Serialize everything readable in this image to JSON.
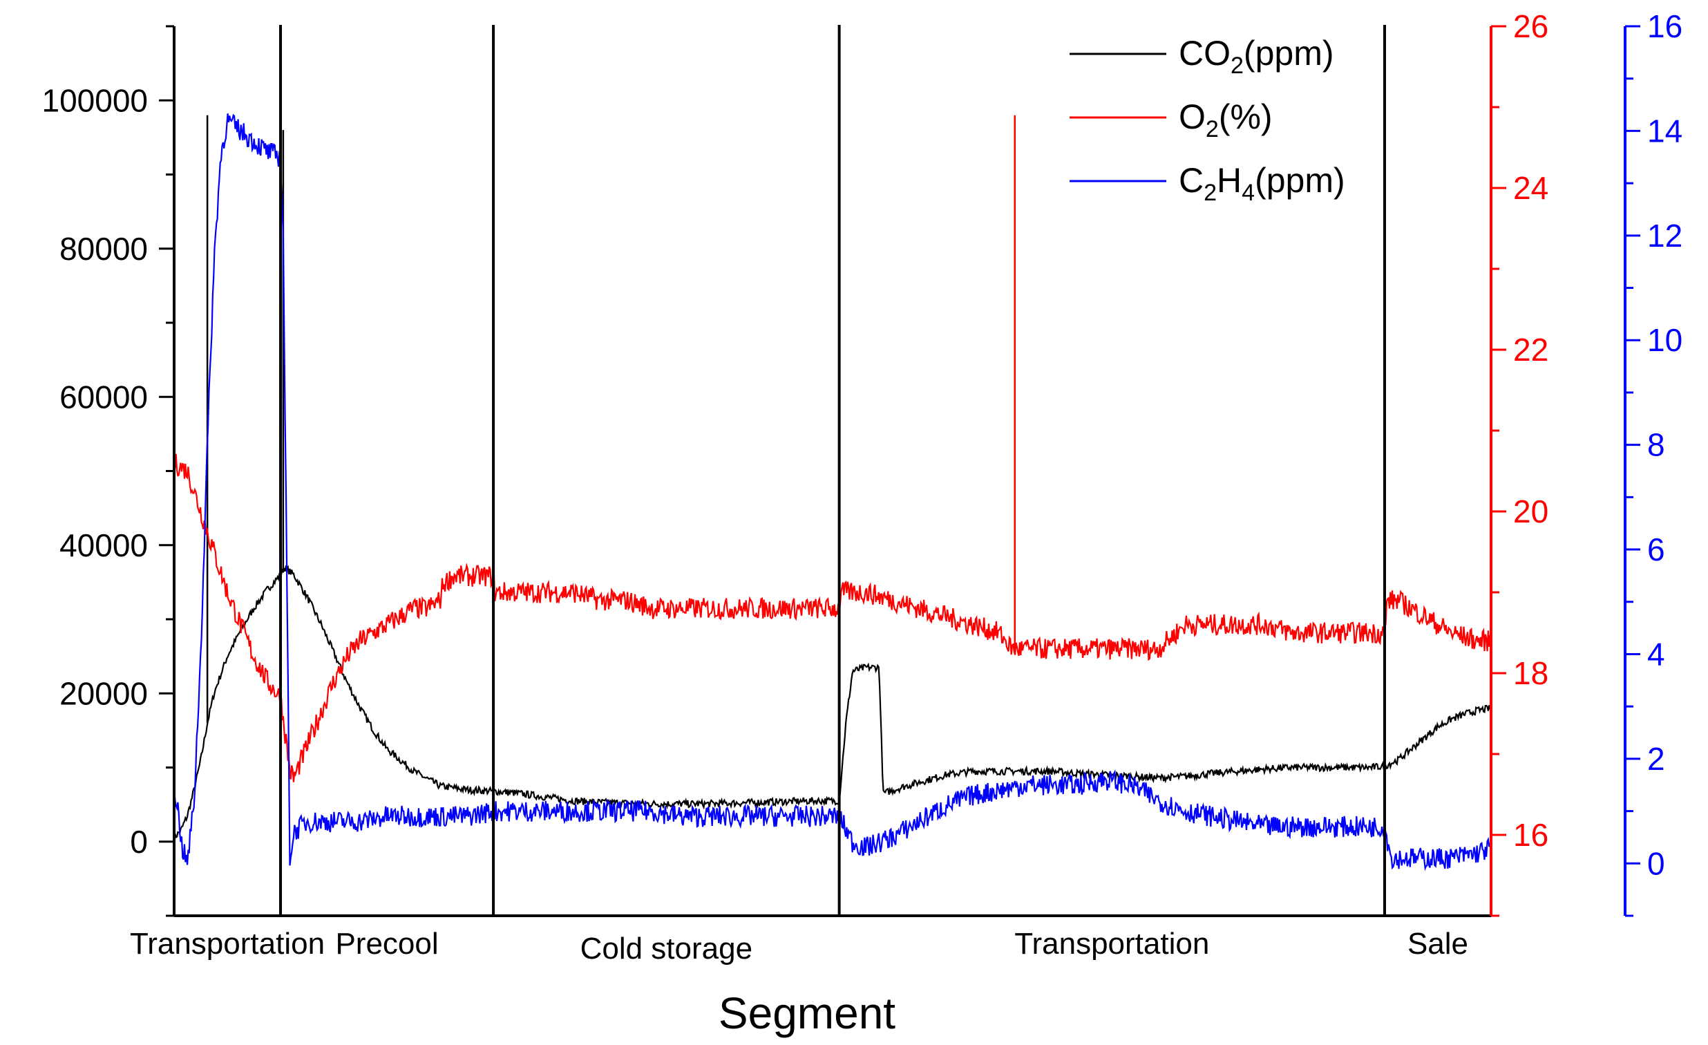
{
  "chart_data": {
    "type": "line",
    "title": "",
    "xlabel": "Segment",
    "segments": [
      "Transportation",
      "Precool",
      "Cold storage",
      "Transportation",
      "Sale"
    ],
    "segment_bounds": [
      0,
      8,
      24,
      50,
      91,
      99
    ],
    "x_range": [
      0,
      99
    ],
    "axes": {
      "left": {
        "color": "#000000",
        "ylim": [
          -10000,
          110000
        ],
        "ticks": [
          0,
          20000,
          40000,
          60000,
          80000,
          100000
        ],
        "tick_labels": [
          "0",
          "20000",
          "40000",
          "60000",
          "80000",
          "100000"
        ]
      },
      "right1": {
        "color": "#ff0000",
        "ylim": [
          15,
          26
        ],
        "ticks": [
          16,
          18,
          20,
          22,
          24,
          26
        ],
        "tick_labels": [
          "16",
          "18",
          "20",
          "22",
          "24",
          "26"
        ]
      },
      "right2": {
        "color": "#0000ff",
        "ylim": [
          -1,
          16
        ],
        "ticks": [
          0,
          2,
          4,
          6,
          8,
          10,
          12,
          14,
          16
        ],
        "tick_labels": [
          "0",
          "2",
          "4",
          "6",
          "8",
          "10",
          "12",
          "14",
          "16"
        ]
      }
    },
    "legend": {
      "position": "top-right",
      "entries": [
        {
          "main": "CO",
          "sub": "2",
          "main2": "",
          "sub2": "",
          "suffix": "(ppm)",
          "color": "#000000"
        },
        {
          "main": "O",
          "sub": "2",
          "main2": "",
          "sub2": "",
          "suffix": "(%)",
          "color": "#ff0000"
        },
        {
          "main": "C",
          "sub": "2",
          "main2": "H",
          "sub2": "4",
          "suffix": "(ppm)",
          "color": "#0000ff"
        }
      ]
    },
    "series": [
      {
        "name": "CO2(ppm)",
        "axis": "left",
        "color": "#000000",
        "x": [
          0,
          0.5,
          1,
          1.5,
          2,
          2.5,
          3,
          4,
          5,
          6,
          7,
          8,
          8.3,
          9,
          10,
          11,
          12,
          13,
          14,
          15,
          16,
          18,
          20,
          22,
          24,
          26,
          28,
          30,
          32,
          34,
          36,
          38,
          40,
          42,
          44,
          46,
          48,
          50,
          50.5,
          51,
          52,
          53,
          53.3,
          55,
          58,
          60,
          62,
          64,
          66,
          68,
          70,
          72,
          74,
          76,
          78,
          80,
          82,
          84,
          86,
          88,
          90,
          91,
          92,
          93,
          94,
          95,
          96,
          97,
          98,
          99
        ],
        "y": [
          500,
          1500,
          3500,
          7000,
          11000,
          16000,
          20000,
          25000,
          28500,
          31500,
          34000,
          36000,
          37000,
          36000,
          33000,
          29500,
          25500,
          21500,
          18000,
          15000,
          12500,
          9500,
          7500,
          7000,
          6800,
          6500,
          6000,
          5500,
          5300,
          5200,
          5100,
          5100,
          5100,
          5200,
          5300,
          5400,
          5500,
          5500,
          16000,
          23000,
          23500,
          23500,
          6500,
          7500,
          9000,
          9500,
          9500,
          9500,
          9500,
          9200,
          9000,
          8800,
          8600,
          8800,
          9200,
          9500,
          9800,
          10000,
          10000,
          10000,
          10000,
          10200,
          11000,
          12500,
          14000,
          15500,
          16500,
          17200,
          17700,
          18000
        ],
        "spikes": [
          [
            2.5,
            98000
          ],
          [
            8.2,
            96000
          ]
        ]
      },
      {
        "name": "O2(%)",
        "axis": "right1",
        "color": "#ff0000",
        "x": [
          0,
          1,
          2,
          3,
          4,
          5,
          6,
          7,
          8,
          8.7,
          9,
          10,
          11,
          12,
          13,
          14,
          15,
          16,
          17,
          18,
          19,
          20,
          20.2,
          21,
          22,
          23,
          24,
          24.1,
          26,
          28,
          30,
          32,
          34,
          36,
          38,
          40,
          42,
          44,
          46,
          48,
          50,
          50.1,
          52,
          54,
          56,
          58,
          60,
          62,
          63,
          63.5,
          64,
          66,
          68,
          70,
          72,
          74,
          76,
          78,
          80,
          82,
          84,
          86,
          88,
          90,
          91,
          91.2,
          92,
          94,
          96,
          98,
          99
        ],
        "y": [
          20.6,
          20.5,
          20.0,
          19.5,
          19.0,
          18.6,
          18.2,
          17.9,
          17.7,
          16.8,
          16.7,
          17.1,
          17.5,
          17.9,
          18.2,
          18.4,
          18.5,
          18.6,
          18.7,
          18.8,
          18.8,
          18.9,
          19.1,
          19.2,
          19.2,
          19.2,
          19.2,
          19.0,
          19.0,
          19.0,
          19.0,
          18.9,
          18.9,
          18.8,
          18.8,
          18.8,
          18.8,
          18.8,
          18.8,
          18.8,
          18.8,
          19.0,
          19.0,
          18.9,
          18.8,
          18.7,
          18.6,
          18.5,
          18.3,
          18.3,
          18.3,
          18.3,
          18.3,
          18.3,
          18.3,
          18.3,
          18.6,
          18.6,
          18.6,
          18.6,
          18.5,
          18.5,
          18.5,
          18.5,
          18.5,
          18.9,
          18.9,
          18.7,
          18.5,
          18.4,
          18.4
        ],
        "spikes": [
          [
            63.2,
            24.9
          ]
        ]
      },
      {
        "name": "C2H4(ppm)",
        "axis": "right2",
        "color": "#0000ff",
        "x": [
          0,
          0.3,
          0.6,
          1,
          1.5,
          2,
          2.5,
          3,
          3.5,
          4,
          5,
          6,
          7,
          8,
          8.2,
          8.7,
          9,
          10,
          12,
          14,
          16,
          18,
          20,
          22,
          24,
          26,
          28,
          30,
          32,
          34,
          36,
          38,
          40,
          42,
          44,
          46,
          48,
          50,
          51,
          52,
          54,
          56,
          58,
          60,
          62,
          64,
          66,
          68,
          70,
          72,
          74,
          76,
          78,
          80,
          82,
          84,
          86,
          88,
          90,
          91,
          91.5,
          92,
          94,
          96,
          98,
          99
        ],
        "y": [
          1.5,
          1.0,
          0.3,
          0.0,
          1.2,
          4.0,
          8.0,
          11.5,
          13.5,
          14.2,
          14.0,
          13.8,
          13.6,
          13.5,
          12.0,
          0.1,
          0.6,
          0.8,
          0.8,
          0.8,
          0.9,
          0.9,
          0.9,
          0.9,
          1.0,
          1.0,
          1.0,
          1.0,
          1.0,
          1.0,
          1.0,
          0.9,
          0.9,
          0.9,
          0.9,
          0.9,
          0.9,
          0.9,
          0.4,
          0.3,
          0.5,
          0.8,
          1.1,
          1.3,
          1.4,
          1.5,
          1.5,
          1.5,
          1.6,
          1.5,
          1.2,
          1.0,
          0.9,
          0.8,
          0.7,
          0.7,
          0.7,
          0.7,
          0.7,
          0.7,
          0.1,
          0.1,
          0.1,
          0.1,
          0.2,
          0.3
        ]
      }
    ]
  }
}
